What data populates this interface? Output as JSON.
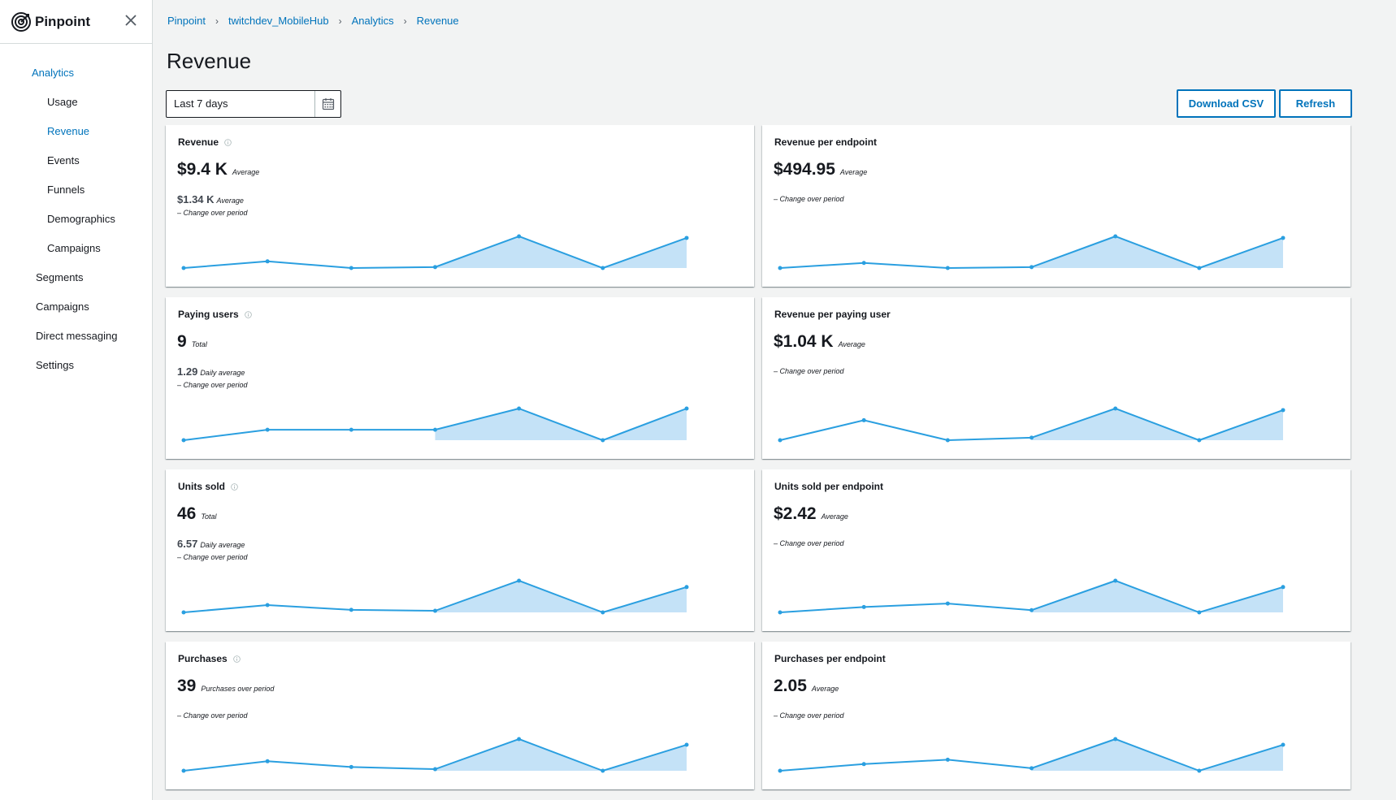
{
  "sidebar": {
    "brand": "Pinpoint",
    "items": [
      {
        "label": "Analytics",
        "level": "section"
      },
      {
        "label": "Usage",
        "level": "sub"
      },
      {
        "label": "Revenue",
        "level": "sub",
        "active": true
      },
      {
        "label": "Events",
        "level": "sub"
      },
      {
        "label": "Funnels",
        "level": "sub"
      },
      {
        "label": "Demographics",
        "level": "sub"
      },
      {
        "label": "Campaigns",
        "level": "sub"
      },
      {
        "label": "Segments",
        "level": "top"
      },
      {
        "label": "Campaigns",
        "level": "top"
      },
      {
        "label": "Direct messaging",
        "level": "top"
      },
      {
        "label": "Settings",
        "level": "top"
      }
    ]
  },
  "breadcrumb": [
    "Pinpoint",
    "twitchdev_MobileHub",
    "Analytics",
    "Revenue"
  ],
  "page_title": "Revenue",
  "date_range": "Last 7 days",
  "buttons": {
    "download_csv": "Download CSV",
    "refresh": "Refresh"
  },
  "colors": {
    "accent": "#0073bb",
    "spark_line": "#2a9fe0",
    "spark_fill": "#c4e2f7"
  },
  "cards": [
    {
      "title": "Revenue",
      "info": true,
      "value": "$9.4 K",
      "unit": "Average",
      "sub_value": "$1.34 K",
      "sub_unit": "Average",
      "change": "– Change over period",
      "series": [
        0.0,
        0.21,
        0.0,
        0.03,
        1.0,
        0.0,
        0.95
      ]
    },
    {
      "title": "Revenue per endpoint",
      "info": false,
      "value": "$494.95",
      "unit": "Average",
      "sub_value": "",
      "sub_unit": "",
      "change": "– Change over period",
      "series": [
        0.0,
        0.16,
        0.0,
        0.03,
        1.0,
        0.0,
        0.95
      ]
    },
    {
      "title": "Paying users",
      "info": true,
      "value": "9",
      "unit": "Total",
      "sub_value": "1.29",
      "sub_unit": "Daily average",
      "change": "– Change over period",
      "series": [
        0.0,
        0.33,
        0.33,
        0.33,
        1.0,
        0.0,
        1.0
      ]
    },
    {
      "title": "Revenue per paying user",
      "info": false,
      "value": "$1.04 K",
      "unit": "Average",
      "sub_value": "",
      "sub_unit": "",
      "change": "– Change over period",
      "series": [
        0.0,
        0.63,
        0.0,
        0.08,
        1.0,
        0.0,
        0.95
      ]
    },
    {
      "title": "Units sold",
      "info": true,
      "value": "46",
      "unit": "Total",
      "sub_value": "6.57",
      "sub_unit": "Daily average",
      "change": "– Change over period",
      "series": [
        0.0,
        0.23,
        0.08,
        0.05,
        1.0,
        0.0,
        0.8
      ]
    },
    {
      "title": "Units sold per endpoint",
      "info": false,
      "value": "$2.42",
      "unit": "Average",
      "sub_value": "",
      "sub_unit": "",
      "change": "– Change over period",
      "series": [
        0.0,
        0.17,
        0.28,
        0.07,
        1.0,
        0.0,
        0.8
      ]
    },
    {
      "title": "Purchases",
      "info": true,
      "value": "39",
      "unit": "Purchases over period",
      "sub_value": "",
      "sub_unit": "",
      "change": "– Change over period",
      "series": [
        0.0,
        0.3,
        0.12,
        0.05,
        1.0,
        0.0,
        0.82
      ]
    },
    {
      "title": "Purchases per endpoint",
      "info": false,
      "value": "2.05",
      "unit": "Average",
      "sub_value": "",
      "sub_unit": "",
      "change": "– Change over period",
      "series": [
        0.0,
        0.21,
        0.35,
        0.08,
        1.0,
        0.0,
        0.82
      ]
    }
  ]
}
